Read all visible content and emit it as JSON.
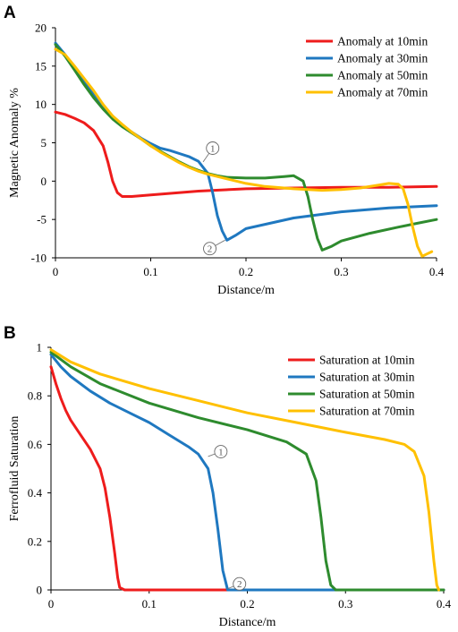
{
  "colors": {
    "red": "#ee1c1c",
    "blue": "#1f78c0",
    "green": "#2e8b2e",
    "yellow": "#ffc000"
  },
  "chart_data": [
    {
      "panel": "A",
      "type": "line",
      "xlabel": "Distance/m",
      "ylabel": "Magnetic Anomaly %",
      "xlim": [
        0,
        0.4
      ],
      "ylim": [
        -10,
        20
      ],
      "x_ticks": [
        "0",
        "0.1",
        "0.2",
        "0.3",
        "0.4"
      ],
      "y_ticks": [
        "20",
        "15",
        "10",
        "5",
        "0",
        "-5",
        "-10"
      ],
      "legend_position": "top-right",
      "grid": false,
      "series": [
        {
          "name": "Anomaly at 10min",
          "color": "#ee1c1c",
          "points": [
            [
              0,
              9
            ],
            [
              0.01,
              8.7
            ],
            [
              0.02,
              8.2
            ],
            [
              0.03,
              7.6
            ],
            [
              0.04,
              6.6
            ],
            [
              0.05,
              4.6
            ],
            [
              0.055,
              2.5
            ],
            [
              0.06,
              0
            ],
            [
              0.065,
              -1.5
            ],
            [
              0.07,
              -2
            ],
            [
              0.08,
              -2
            ],
            [
              0.1,
              -1.8
            ],
            [
              0.15,
              -1.3
            ],
            [
              0.2,
              -1
            ],
            [
              0.25,
              -0.9
            ],
            [
              0.3,
              -0.8
            ],
            [
              0.35,
              -0.8
            ],
            [
              0.4,
              -0.7
            ]
          ]
        },
        {
          "name": "Anomaly at 30min",
          "color": "#1f78c0",
          "points": [
            [
              0,
              18
            ],
            [
              0.01,
              16.5
            ],
            [
              0.02,
              14.7
            ],
            [
              0.03,
              13
            ],
            [
              0.04,
              11.3
            ],
            [
              0.05,
              9.6
            ],
            [
              0.06,
              8.2
            ],
            [
              0.07,
              7.2
            ],
            [
              0.08,
              6.4
            ],
            [
              0.09,
              5.6
            ],
            [
              0.1,
              4.9
            ],
            [
              0.11,
              4.3
            ],
            [
              0.12,
              4
            ],
            [
              0.13,
              3.6
            ],
            [
              0.14,
              3.2
            ],
            [
              0.15,
              2.6
            ],
            [
              0.16,
              1
            ],
            [
              0.165,
              -1.5
            ],
            [
              0.17,
              -4.5
            ],
            [
              0.175,
              -6.5
            ],
            [
              0.18,
              -7.7
            ],
            [
              0.19,
              -7
            ],
            [
              0.2,
              -6.2
            ],
            [
              0.25,
              -4.8
            ],
            [
              0.3,
              -4
            ],
            [
              0.35,
              -3.5
            ],
            [
              0.4,
              -3.2
            ]
          ]
        },
        {
          "name": "Anomaly at 50min",
          "color": "#2e8b2e",
          "points": [
            [
              0,
              17.8
            ],
            [
              0.01,
              16.3
            ],
            [
              0.02,
              14.5
            ],
            [
              0.03,
              12.6
            ],
            [
              0.04,
              10.9
            ],
            [
              0.05,
              9.4
            ],
            [
              0.06,
              8.1
            ],
            [
              0.07,
              7.1
            ],
            [
              0.08,
              6.3
            ],
            [
              0.09,
              5.5
            ],
            [
              0.1,
              4.6
            ],
            [
              0.11,
              3.9
            ],
            [
              0.12,
              3.2
            ],
            [
              0.13,
              2.5
            ],
            [
              0.14,
              1.9
            ],
            [
              0.15,
              1.4
            ],
            [
              0.16,
              1
            ],
            [
              0.17,
              0.7
            ],
            [
              0.18,
              0.5
            ],
            [
              0.2,
              0.4
            ],
            [
              0.22,
              0.4
            ],
            [
              0.24,
              0.6
            ],
            [
              0.25,
              0.7
            ],
            [
              0.26,
              0
            ],
            [
              0.265,
              -2
            ],
            [
              0.27,
              -5
            ],
            [
              0.275,
              -7.5
            ],
            [
              0.28,
              -9
            ],
            [
              0.29,
              -8.5
            ],
            [
              0.3,
              -7.8
            ],
            [
              0.33,
              -6.8
            ],
            [
              0.36,
              -6
            ],
            [
              0.38,
              -5.5
            ],
            [
              0.4,
              -5
            ]
          ]
        },
        {
          "name": "Anomaly at 70min",
          "color": "#ffc000",
          "points": [
            [
              0,
              17.2
            ],
            [
              0.01,
              16.5
            ],
            [
              0.02,
              15
            ],
            [
              0.03,
              13.4
            ],
            [
              0.04,
              11.8
            ],
            [
              0.05,
              10
            ],
            [
              0.06,
              8.5
            ],
            [
              0.07,
              7.4
            ],
            [
              0.08,
              6.4
            ],
            [
              0.09,
              5.5
            ],
            [
              0.1,
              4.6
            ],
            [
              0.11,
              3.8
            ],
            [
              0.12,
              3.1
            ],
            [
              0.13,
              2.4
            ],
            [
              0.14,
              1.8
            ],
            [
              0.15,
              1.3
            ],
            [
              0.16,
              0.9
            ],
            [
              0.18,
              0.3
            ],
            [
              0.2,
              -0.3
            ],
            [
              0.22,
              -0.7
            ],
            [
              0.25,
              -1
            ],
            [
              0.28,
              -1.2
            ],
            [
              0.3,
              -1.1
            ],
            [
              0.32,
              -0.9
            ],
            [
              0.34,
              -0.5
            ],
            [
              0.35,
              -0.3
            ],
            [
              0.36,
              -0.4
            ],
            [
              0.365,
              -1
            ],
            [
              0.37,
              -3
            ],
            [
              0.375,
              -6
            ],
            [
              0.38,
              -8.5
            ],
            [
              0.385,
              -9.8
            ],
            [
              0.39,
              -9.5
            ],
            [
              0.395,
              -9.2
            ]
          ]
        }
      ],
      "annotations": [
        {
          "label": "1",
          "point": [
            0.155,
            2.5
          ],
          "anchor": [
            0.165,
            4.3
          ]
        },
        {
          "label": "2",
          "point": [
            0.178,
            -7.7
          ],
          "anchor": [
            0.162,
            -8.8
          ]
        }
      ]
    },
    {
      "panel": "B",
      "type": "line",
      "xlabel": "Distance/m",
      "ylabel": "Ferrofluid Saturation",
      "xlim": [
        0,
        0.4
      ],
      "ylim": [
        0,
        1
      ],
      "x_ticks": [
        "0",
        "0.1",
        "0.2",
        "0.3",
        "0.4"
      ],
      "y_ticks": [
        "1",
        "0.8",
        "0.6",
        "0.4",
        "0.2",
        "0"
      ],
      "legend_position": "top-right",
      "grid": false,
      "series": [
        {
          "name": "Saturation at 10min",
          "color": "#ee1c1c",
          "points": [
            [
              0,
              0.92
            ],
            [
              0.005,
              0.85
            ],
            [
              0.01,
              0.79
            ],
            [
              0.015,
              0.74
            ],
            [
              0.02,
              0.7
            ],
            [
              0.03,
              0.64
            ],
            [
              0.04,
              0.58
            ],
            [
              0.05,
              0.5
            ],
            [
              0.055,
              0.42
            ],
            [
              0.06,
              0.3
            ],
            [
              0.065,
              0.15
            ],
            [
              0.068,
              0.05
            ],
            [
              0.07,
              0.01
            ],
            [
              0.075,
              0
            ],
            [
              0.4,
              0
            ]
          ]
        },
        {
          "name": "Saturation at 30min",
          "color": "#1f78c0",
          "points": [
            [
              0,
              0.97
            ],
            [
              0.01,
              0.92
            ],
            [
              0.02,
              0.88
            ],
            [
              0.04,
              0.82
            ],
            [
              0.06,
              0.77
            ],
            [
              0.08,
              0.73
            ],
            [
              0.1,
              0.69
            ],
            [
              0.12,
              0.64
            ],
            [
              0.14,
              0.59
            ],
            [
              0.15,
              0.56
            ],
            [
              0.16,
              0.5
            ],
            [
              0.165,
              0.4
            ],
            [
              0.17,
              0.25
            ],
            [
              0.175,
              0.08
            ],
            [
              0.18,
              0
            ],
            [
              0.4,
              0
            ]
          ]
        },
        {
          "name": "Saturation at 50min",
          "color": "#2e8b2e",
          "points": [
            [
              0,
              0.98
            ],
            [
              0.02,
              0.92
            ],
            [
              0.05,
              0.85
            ],
            [
              0.1,
              0.77
            ],
            [
              0.15,
              0.71
            ],
            [
              0.2,
              0.66
            ],
            [
              0.24,
              0.61
            ],
            [
              0.26,
              0.56
            ],
            [
              0.27,
              0.45
            ],
            [
              0.275,
              0.3
            ],
            [
              0.28,
              0.12
            ],
            [
              0.285,
              0.02
            ],
            [
              0.29,
              0
            ],
            [
              0.4,
              0
            ]
          ]
        },
        {
          "name": "Saturation at 70min",
          "color": "#ffc000",
          "points": [
            [
              0,
              0.99
            ],
            [
              0.02,
              0.94
            ],
            [
              0.05,
              0.89
            ],
            [
              0.1,
              0.83
            ],
            [
              0.15,
              0.78
            ],
            [
              0.2,
              0.73
            ],
            [
              0.25,
              0.69
            ],
            [
              0.3,
              0.65
            ],
            [
              0.34,
              0.62
            ],
            [
              0.36,
              0.6
            ],
            [
              0.37,
              0.57
            ],
            [
              0.38,
              0.47
            ],
            [
              0.385,
              0.32
            ],
            [
              0.39,
              0.12
            ],
            [
              0.393,
              0.02
            ],
            [
              0.395,
              0
            ]
          ]
        }
      ],
      "annotations": [
        {
          "label": "1",
          "point": [
            0.16,
            0.55
          ],
          "anchor": [
            0.173,
            0.57
          ]
        },
        {
          "label": "2",
          "point": [
            0.18,
            0.005
          ],
          "anchor": [
            0.192,
            0.025
          ]
        }
      ]
    }
  ]
}
